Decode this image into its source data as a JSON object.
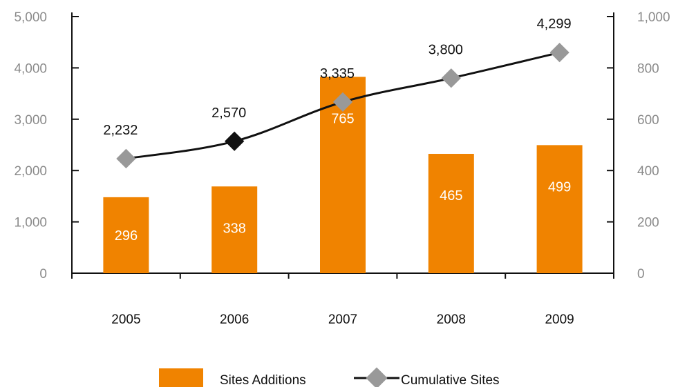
{
  "chart_data": {
    "type": "bar",
    "categories": [
      "2005",
      "2006",
      "2007",
      "2008",
      "2009"
    ],
    "series": [
      {
        "name": "Sites Additions",
        "type": "bar",
        "axis": "right",
        "values": [
          296,
          338,
          765,
          465,
          499
        ],
        "color": "#f08300"
      },
      {
        "name": "Cumulative Sites",
        "type": "line",
        "axis": "left",
        "values": [
          2232,
          2570,
          3335,
          3800,
          4299
        ],
        "line_color": "#111111",
        "marker_color": "#999999",
        "highlight_marker_color": "#111111",
        "highlight_index": 1
      }
    ],
    "y_left": {
      "ylim": [
        0,
        5000
      ],
      "ticks": [
        0,
        1000,
        2000,
        3000,
        4000,
        5000
      ],
      "tick_labels": [
        "0",
        "1,000",
        "2,000",
        "3,000",
        "4,000",
        "5,000"
      ]
    },
    "y_right": {
      "ylim": [
        0,
        1000
      ],
      "ticks": [
        0,
        200,
        400,
        600,
        800,
        1000
      ],
      "tick_labels": [
        "0",
        "200",
        "400",
        "600",
        "800",
        "1,000"
      ]
    },
    "bar_labels": [
      "296",
      "338",
      "765",
      "465",
      "499"
    ],
    "line_labels": [
      "2,232",
      "2,570",
      "3,335",
      "3,800",
      "4,299"
    ],
    "grid": false,
    "legend": {
      "position": "bottom",
      "items": [
        "Sites Additions",
        "Cumulative Sites"
      ]
    },
    "title": "",
    "xlabel": "",
    "ylabel": ""
  }
}
